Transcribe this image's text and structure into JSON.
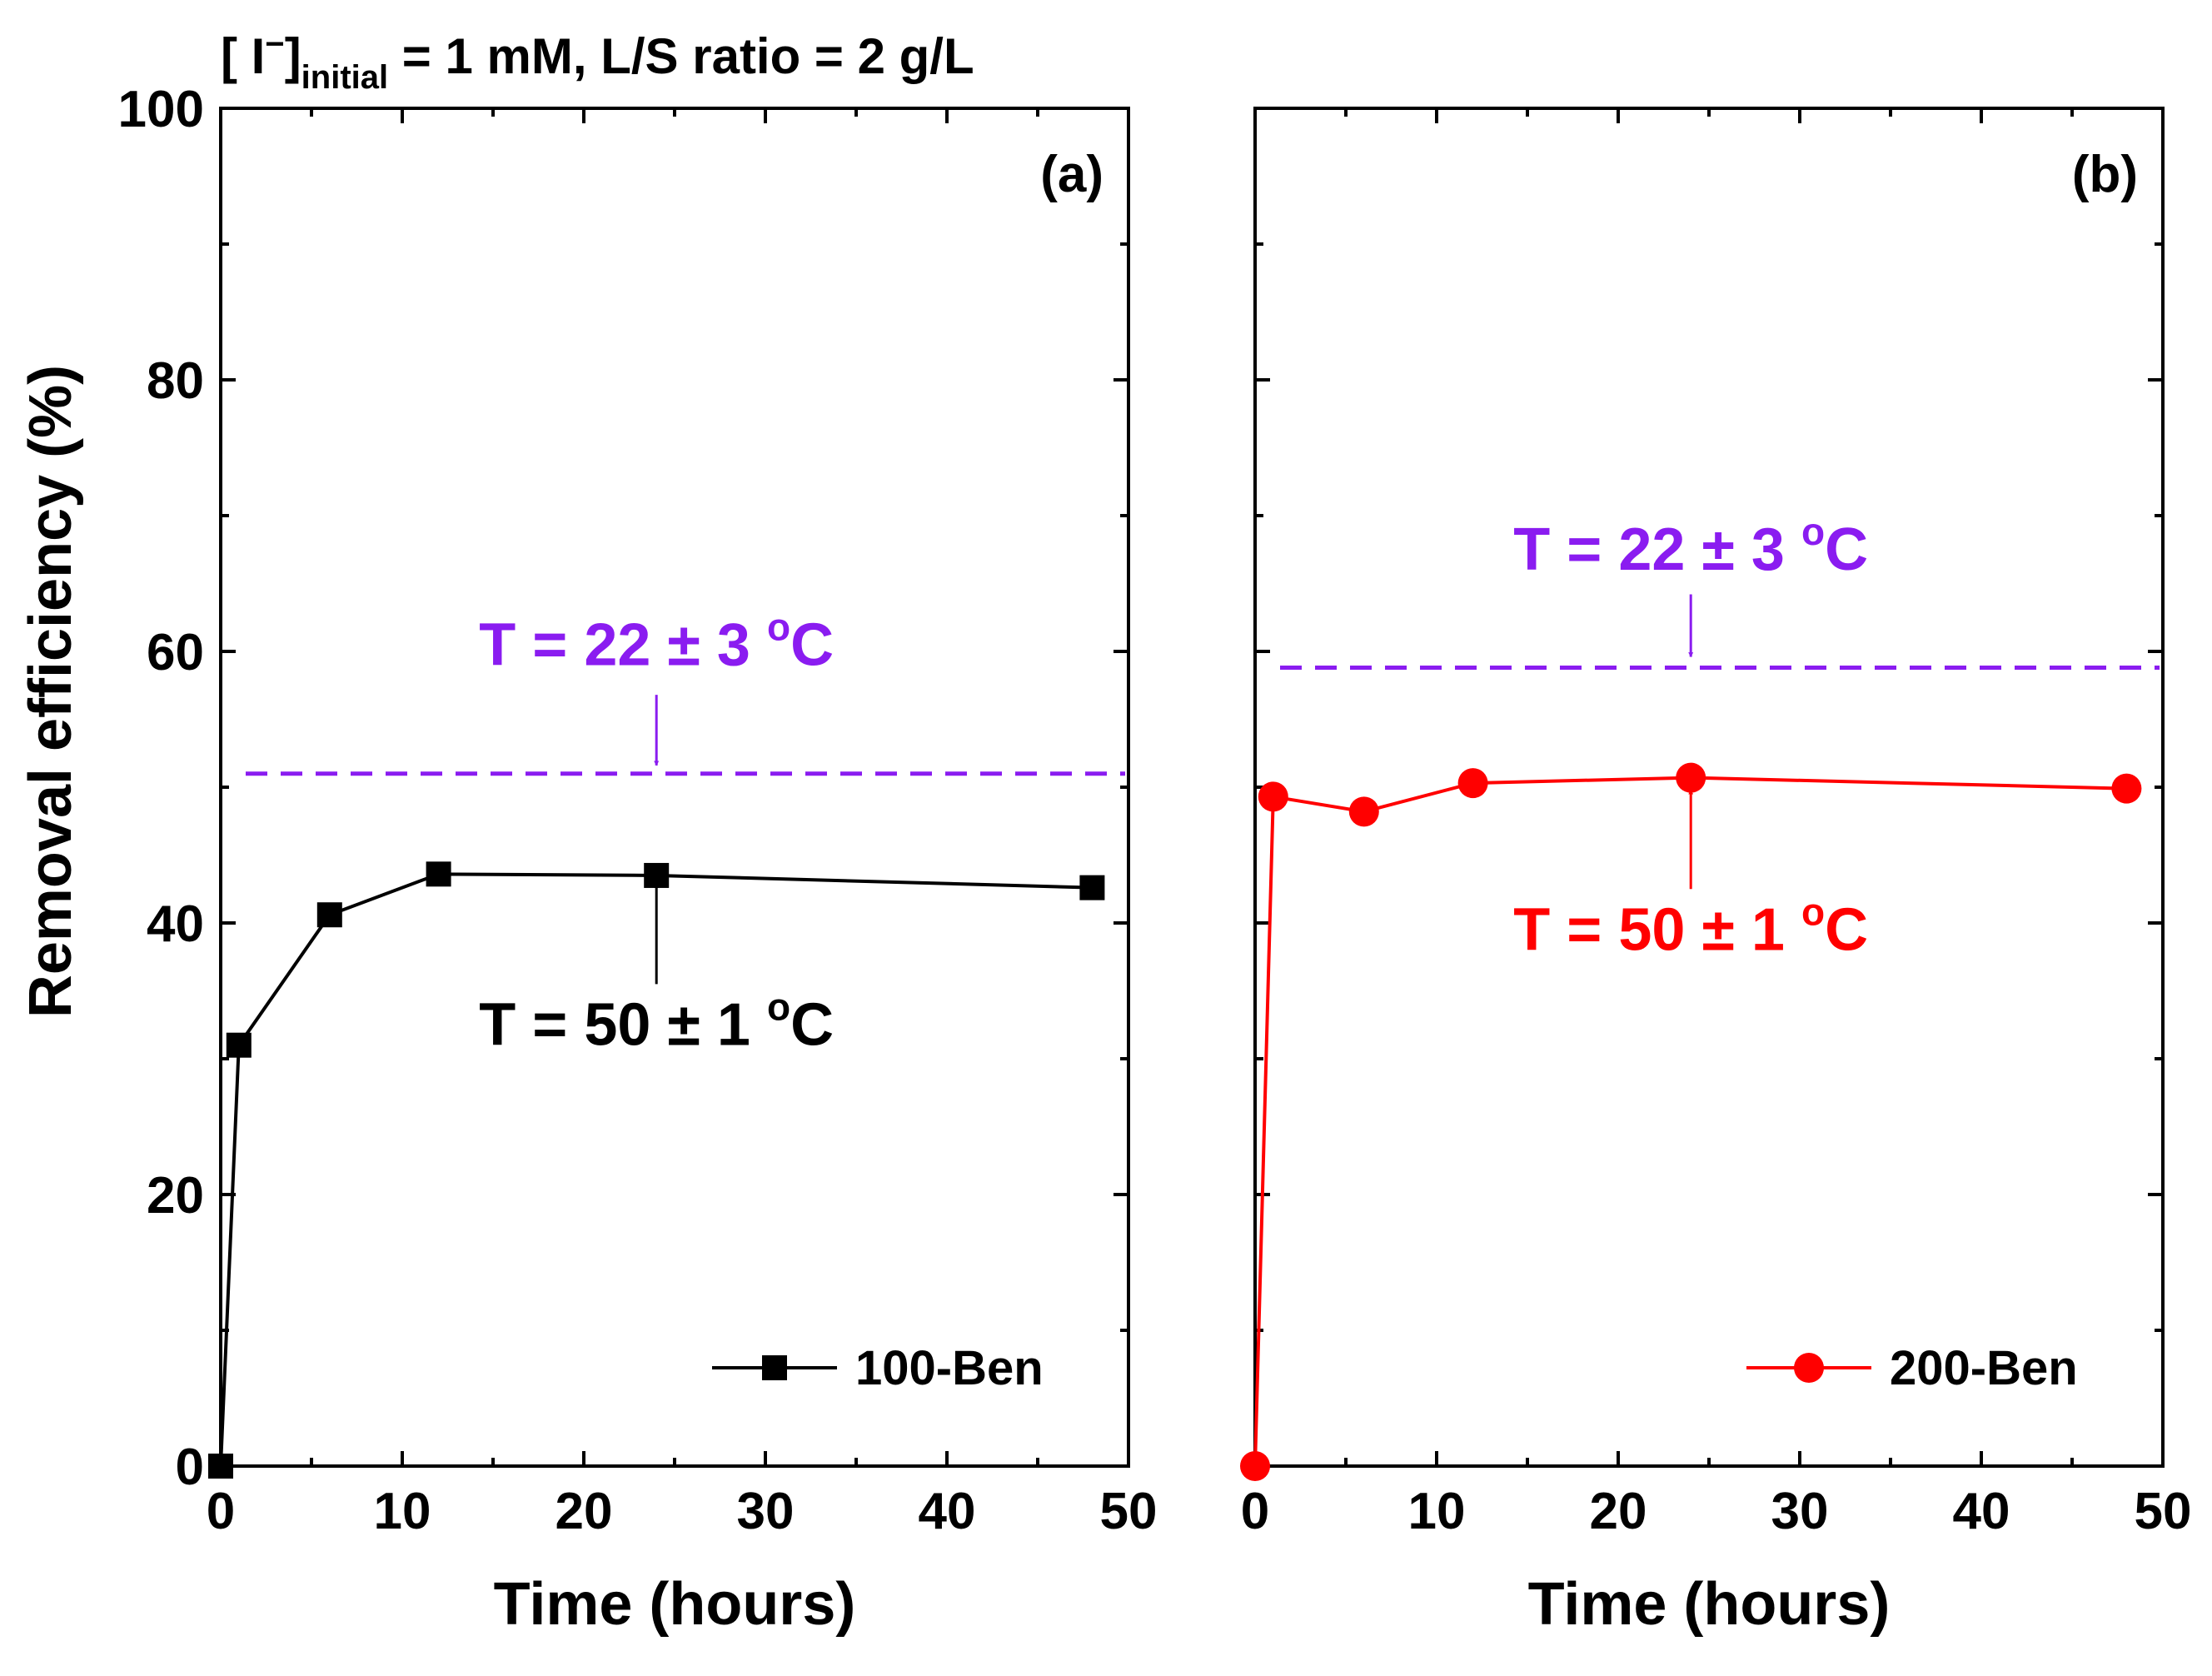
{
  "header": {
    "prefix": "[ I",
    "superscript": "−",
    "close_bracket": "]",
    "subscript": "initial",
    "suffix": " = 1 mM, L/S ratio = 2 g/L"
  },
  "colors": {
    "series_a": "#000000",
    "series_b": "#ff0000",
    "reference": "#8a1cf0",
    "axis": "#000000"
  },
  "chart_data": [
    {
      "type": "line",
      "panel_label": "(a)",
      "xlabel": "Time (hours)",
      "ylabel": "Removal efficiency (%)",
      "xlim": [
        0,
        50
      ],
      "ylim": [
        0,
        100
      ],
      "xticks": [
        0,
        10,
        20,
        30,
        40,
        50
      ],
      "yticks": [
        0,
        20,
        40,
        60,
        80,
        100
      ],
      "series": [
        {
          "name": "100-Ben",
          "marker": "square",
          "color": "#000000",
          "x": [
            0,
            1,
            6,
            12,
            24,
            48
          ],
          "y": [
            0,
            31,
            40.6,
            43.6,
            43.5,
            42.6
          ]
        }
      ],
      "reference_line": {
        "y": 51,
        "color": "#8a1cf0"
      },
      "annotations": [
        {
          "text_main": "T = 22 ± 3 ",
          "text_sup": "o",
          "text_end": "C",
          "color": "#8a1cf0",
          "x": 24,
          "y": 59,
          "arrow_from": [
            24,
            56.8
          ],
          "arrow_to": [
            24,
            51.6
          ]
        },
        {
          "text_main": "T = 50 ± 1 ",
          "text_sup": "o",
          "text_end": "C",
          "color": "#000000",
          "x": 24,
          "y": 31,
          "arrow_from": [
            24,
            35.5
          ],
          "arrow_to": [
            24,
            42.9
          ]
        }
      ],
      "legend_position": "bottom-right"
    },
    {
      "type": "line",
      "panel_label": "(b)",
      "xlabel": "Time (hours)",
      "ylabel": "",
      "xlim": [
        0,
        50
      ],
      "ylim": [
        0,
        100
      ],
      "xticks": [
        0,
        10,
        20,
        30,
        40,
        50
      ],
      "yticks": [
        0,
        20,
        40,
        60,
        80,
        100
      ],
      "series": [
        {
          "name": "200-Ben",
          "marker": "circle",
          "color": "#ff0000",
          "x": [
            0,
            1,
            6,
            12,
            24,
            48
          ],
          "y": [
            0,
            49.3,
            48.2,
            50.3,
            50.7,
            49.9
          ]
        }
      ],
      "reference_line": {
        "y": 58.8,
        "color": "#8a1cf0"
      },
      "annotations": [
        {
          "text_main": "T = 22 ± 3 ",
          "text_sup": "o",
          "text_end": "C",
          "color": "#8a1cf0",
          "x": 24,
          "y": 66,
          "arrow_from": [
            24,
            64.2
          ],
          "arrow_to": [
            24,
            59.6
          ]
        },
        {
          "text_main": "T = 50 ± 1 ",
          "text_sup": "o",
          "text_end": "C",
          "color": "#ff0000",
          "x": 24,
          "y": 38,
          "arrow_from": [
            24,
            42.5
          ],
          "arrow_to": [
            24,
            49.8
          ]
        }
      ],
      "legend_position": "bottom-right"
    }
  ]
}
